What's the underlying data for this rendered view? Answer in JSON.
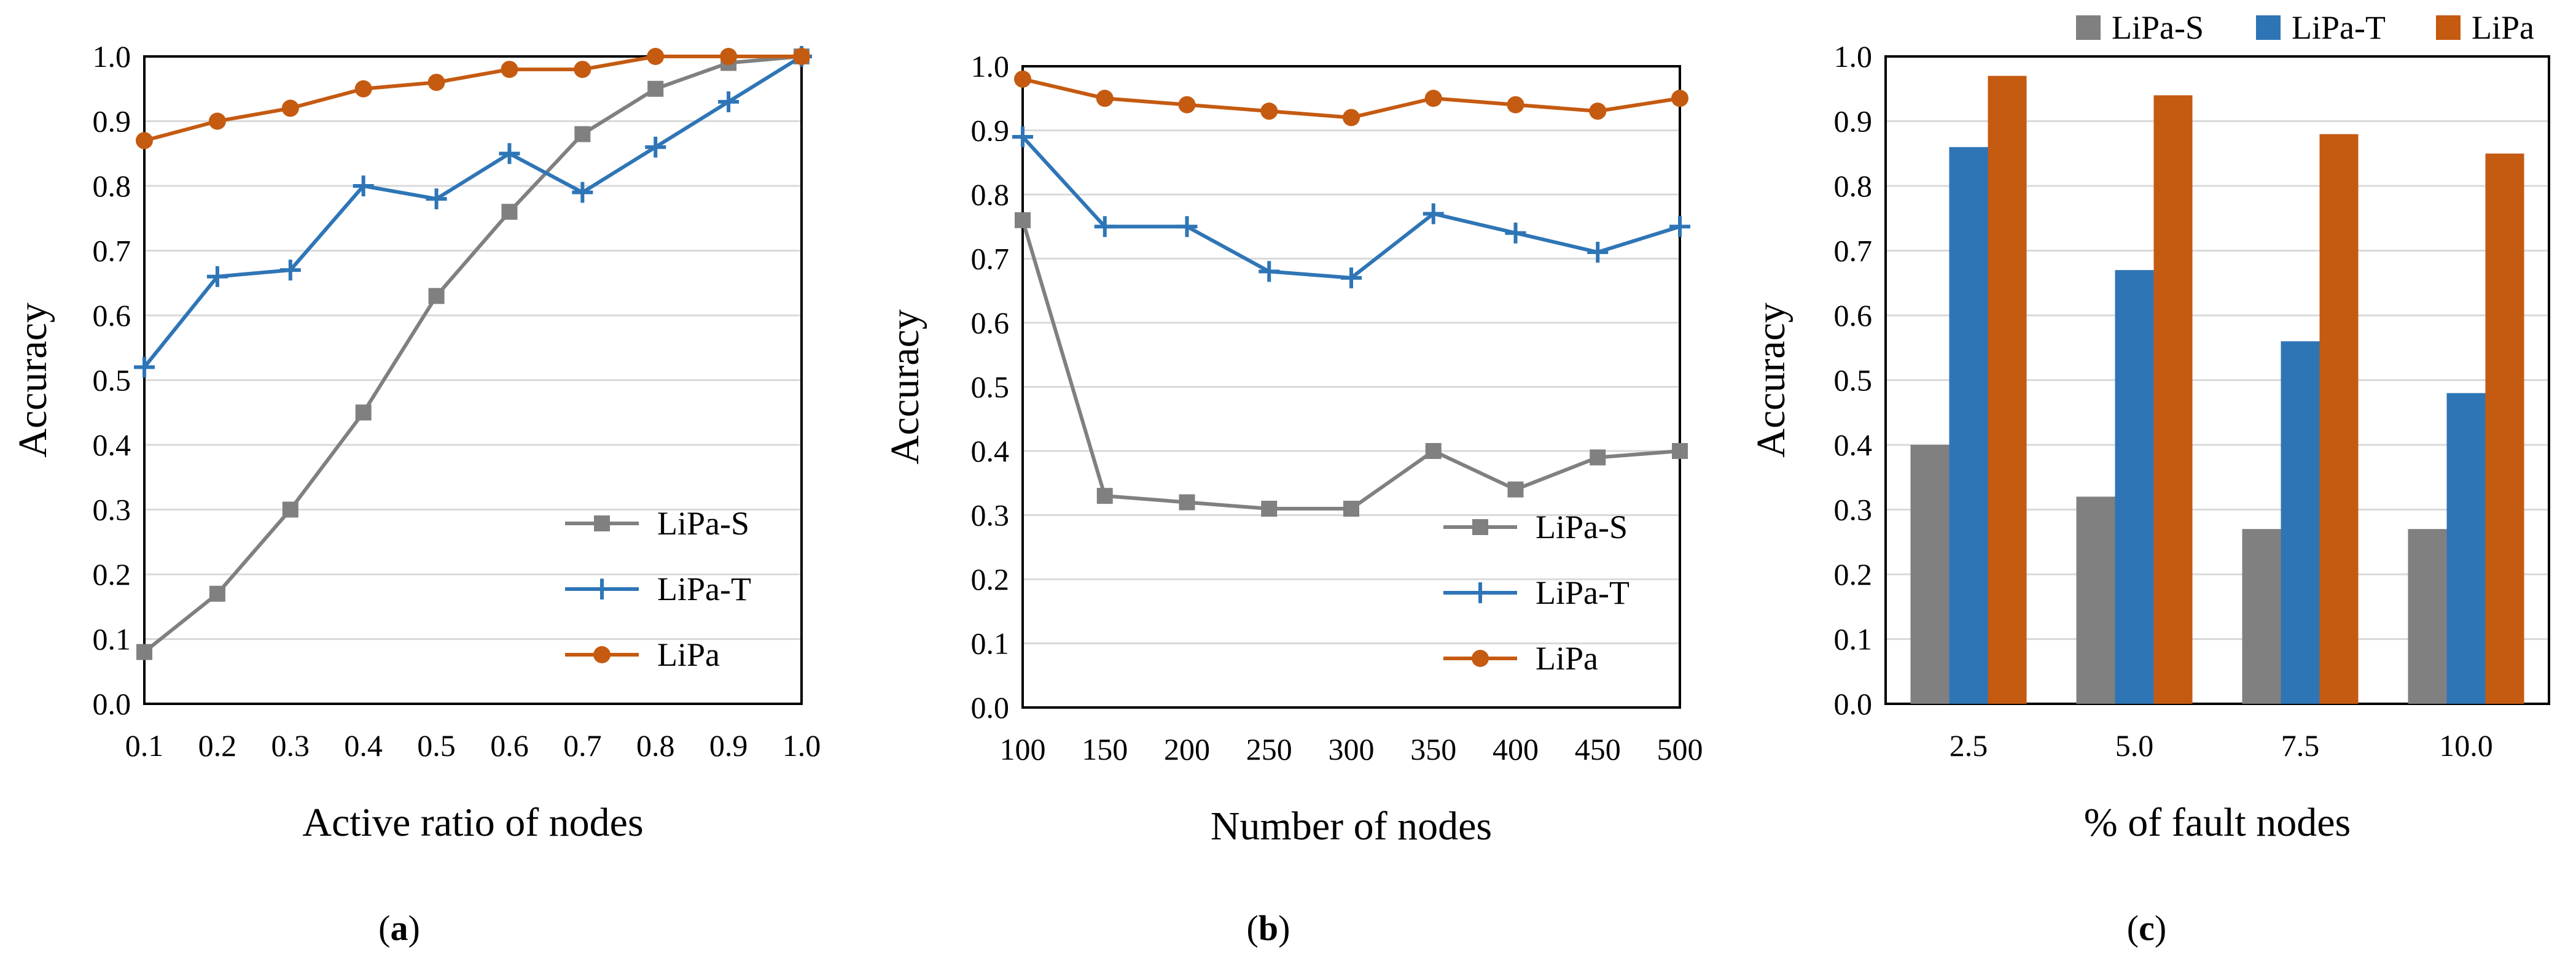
{
  "figure": {
    "panels": [
      {
        "label": "a",
        "caption_parts": [
          "(",
          "a",
          ")"
        ]
      },
      {
        "label": "b",
        "caption_parts": [
          "(",
          "b",
          ")"
        ]
      },
      {
        "label": "c",
        "caption_parts": [
          "(",
          "c",
          ")"
        ]
      }
    ]
  },
  "colors": {
    "LiPa-S": "#808080",
    "LiPa-T": "#2e75b6",
    "LiPa": "#c55a11"
  },
  "chart_data": [
    {
      "type": "line",
      "xlabel": "Active ratio of nodes",
      "ylabel": "Accuracy",
      "x": [
        0.1,
        0.2,
        0.3,
        0.4,
        0.5,
        0.6,
        0.7,
        0.8,
        0.9,
        1.0
      ],
      "x_ticks": [
        "0.1",
        "0.2",
        "0.3",
        "0.4",
        "0.5",
        "0.6",
        "0.7",
        "0.8",
        "0.9",
        "1.0"
      ],
      "ylim": [
        0,
        1
      ],
      "y_ticks": [
        "0.0",
        "0.1",
        "0.2",
        "0.3",
        "0.4",
        "0.5",
        "0.6",
        "0.7",
        "0.8",
        "0.9",
        "1.0"
      ],
      "grid": true,
      "legend_position": "bottom-right",
      "series": [
        {
          "name": "LiPa-S",
          "marker": "square",
          "values": [
            0.08,
            0.17,
            0.3,
            0.45,
            0.63,
            0.76,
            0.88,
            0.95,
            0.99,
            1.0
          ]
        },
        {
          "name": "LiPa-T",
          "marker": "plus",
          "values": [
            0.52,
            0.66,
            0.67,
            0.8,
            0.78,
            0.85,
            0.79,
            0.86,
            0.93,
            1.0
          ]
        },
        {
          "name": "LiPa",
          "marker": "circle",
          "values": [
            0.87,
            0.9,
            0.92,
            0.95,
            0.96,
            0.98,
            0.98,
            1.0,
            1.0,
            1.0
          ]
        }
      ]
    },
    {
      "type": "line",
      "xlabel": "Number of nodes",
      "ylabel": "Accuracy",
      "x": [
        100,
        150,
        200,
        250,
        300,
        350,
        400,
        450,
        500
      ],
      "x_ticks": [
        "100",
        "150",
        "200",
        "250",
        "300",
        "350",
        "400",
        "450",
        "500"
      ],
      "ylim": [
        0,
        1
      ],
      "y_ticks": [
        "0.0",
        "0.1",
        "0.2",
        "0.3",
        "0.4",
        "0.5",
        "0.6",
        "0.7",
        "0.8",
        "0.9",
        "1.0"
      ],
      "grid": true,
      "legend_position": "bottom-right",
      "series": [
        {
          "name": "LiPa-S",
          "marker": "square",
          "values": [
            0.76,
            0.33,
            0.32,
            0.31,
            0.31,
            0.4,
            0.34,
            0.39,
            0.4
          ]
        },
        {
          "name": "LiPa-T",
          "marker": "plus",
          "values": [
            0.89,
            0.75,
            0.75,
            0.68,
            0.67,
            0.77,
            0.74,
            0.71,
            0.75
          ]
        },
        {
          "name": "LiPa",
          "marker": "circle",
          "values": [
            0.98,
            0.95,
            0.94,
            0.93,
            0.92,
            0.95,
            0.94,
            0.93,
            0.95
          ]
        }
      ]
    },
    {
      "type": "bar",
      "xlabel": "% of fault nodes",
      "ylabel": "Accuracy",
      "categories": [
        "2.5",
        "5.0",
        "7.5",
        "10.0"
      ],
      "ylim": [
        0,
        1
      ],
      "y_ticks": [
        "0.0",
        "0.1",
        "0.2",
        "0.3",
        "0.4",
        "0.5",
        "0.6",
        "0.7",
        "0.8",
        "0.9",
        "1.0"
      ],
      "grid": true,
      "legend_position": "top",
      "series": [
        {
          "name": "LiPa-S",
          "values": [
            0.4,
            0.32,
            0.27,
            0.27
          ]
        },
        {
          "name": "LiPa-T",
          "values": [
            0.86,
            0.67,
            0.56,
            0.48
          ]
        },
        {
          "name": "LiPa",
          "values": [
            0.97,
            0.94,
            0.88,
            0.85
          ]
        }
      ]
    }
  ]
}
